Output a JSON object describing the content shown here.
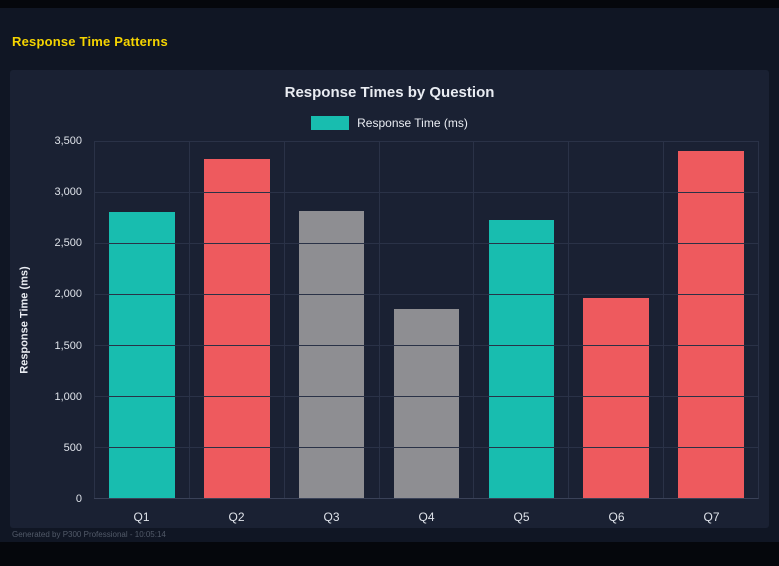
{
  "page": {
    "title": "Response Time Patterns",
    "footer": "Generated by P300 Professional - 10:05:14"
  },
  "chart_data": {
    "type": "bar",
    "title": "Response Times by Question",
    "legend": "Response Time (ms)",
    "ylabel": "Response Time (ms)",
    "xlabel": "",
    "categories": [
      "Q1",
      "Q2",
      "Q3",
      "Q4",
      "Q5",
      "Q6",
      "Q7"
    ],
    "values": [
      2800,
      3320,
      2810,
      1850,
      2730,
      1960,
      3400
    ],
    "bar_colors": [
      "#18bdaf",
      "#ee5a5e",
      "#8e8e92",
      "#8e8e92",
      "#18bdaf",
      "#ee5a5e",
      "#ee5a5e"
    ],
    "ylim": [
      0,
      3500
    ],
    "ytick_step": 500,
    "ytick_labels": [
      "0",
      "500",
      "1,000",
      "1,500",
      "2,000",
      "2,500",
      "3,000",
      "3,500"
    ],
    "grid": true,
    "legend_position": "top",
    "colors": {
      "teal": "#18bdaf",
      "red": "#ee5a5e",
      "gray": "#8e8e92",
      "accent_yellow": "#f5d400"
    }
  }
}
